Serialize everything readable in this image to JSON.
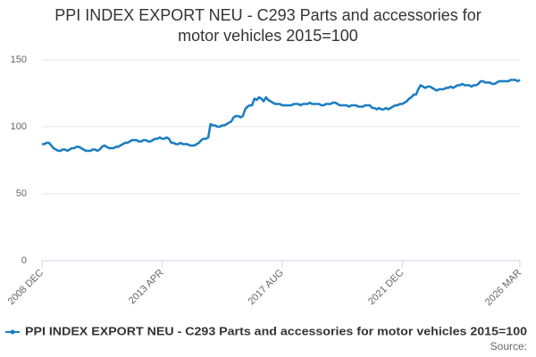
{
  "chart_data": {
    "type": "line",
    "title": "PPI INDEX EXPORT NEU - C293 Parts and accessories for motor vehicles 2015=100",
    "source": "Source:",
    "categories": [
      "2008 DEC",
      null,
      null,
      null,
      null,
      null,
      null,
      null,
      null,
      null,
      null,
      null,
      null,
      null,
      null,
      null,
      null,
      null,
      null,
      null,
      null,
      null,
      null,
      null,
      null,
      null,
      null,
      null,
      null,
      null,
      null,
      null,
      null,
      null,
      null,
      null,
      null,
      null,
      null,
      null,
      null,
      null,
      null,
      null,
      null,
      null,
      null,
      null,
      null,
      null,
      null,
      null,
      "2013 APR",
      null,
      null,
      null,
      null,
      null,
      null,
      null,
      null,
      null,
      null,
      null,
      null,
      null,
      null,
      null,
      null,
      null,
      null,
      null,
      null,
      null,
      null,
      null,
      null,
      null,
      null,
      null,
      null,
      null,
      null,
      null,
      null,
      null,
      null,
      null,
      null,
      null,
      null,
      null,
      null,
      null,
      null,
      null,
      null,
      null,
      null,
      null,
      null,
      null,
      null,
      null,
      "2017 AUG",
      null,
      null,
      null,
      null,
      null,
      null,
      null,
      null,
      null,
      null,
      null,
      null,
      null,
      null,
      null,
      null,
      null,
      null,
      null,
      null,
      null,
      null,
      null,
      null,
      null,
      null,
      null,
      null,
      null,
      null,
      null,
      null,
      null,
      null,
      null,
      null,
      null,
      null,
      null,
      null,
      null,
      null,
      null,
      null,
      null,
      null,
      null,
      null,
      null,
      null,
      null,
      "2021 DEC",
      null,
      null,
      null,
      null,
      null,
      null,
      null,
      null,
      null,
      null,
      null,
      null,
      null,
      null,
      null,
      null,
      null,
      null,
      null,
      null,
      null,
      null,
      null,
      null,
      null,
      null,
      null,
      null,
      null,
      null,
      null,
      null,
      null,
      null,
      null,
      null,
      null,
      null,
      null,
      null,
      null,
      null,
      null,
      null,
      null,
      null,
      null,
      null,
      null,
      null,
      "2026 MAR"
    ],
    "series": [
      {
        "name": "PPI INDEX EXPORT NEU - C293 Parts and accessories for motor vehicles 2015=100",
        "color": "#1a7dc0",
        "values": [
          87,
          87,
          88,
          88,
          86,
          84,
          83,
          82,
          82,
          83,
          83,
          82,
          83,
          84,
          84,
          85,
          85,
          84,
          83,
          82,
          82,
          82,
          83,
          83,
          82,
          83,
          85,
          86,
          85,
          84,
          84,
          84,
          85,
          85,
          86,
          87,
          88,
          88,
          89,
          90,
          90,
          90,
          89,
          89,
          90,
          90,
          89,
          89,
          90,
          91,
          91,
          92,
          91,
          91,
          92,
          91,
          88,
          88,
          87,
          87,
          88,
          87,
          87,
          87,
          86,
          86,
          86,
          87,
          88,
          90,
          91,
          91,
          92,
          102,
          101,
          101,
          100,
          100,
          101,
          101,
          102,
          103,
          104,
          107,
          108,
          108,
          107,
          108,
          113,
          115,
          116,
          116,
          121,
          120,
          122,
          121,
          119,
          122,
          120,
          119,
          118,
          117,
          117,
          117,
          116,
          116,
          116,
          116,
          116,
          117,
          117,
          117,
          116,
          117,
          117,
          117,
          118,
          117,
          117,
          117,
          117,
          116,
          116,
          117,
          117,
          117,
          118,
          118,
          117,
          116,
          116,
          116,
          116,
          115,
          116,
          116,
          116,
          115,
          115,
          115,
          116,
          116,
          116,
          114,
          114,
          113,
          114,
          113,
          113,
          114,
          113,
          114,
          115,
          116,
          116,
          117,
          117,
          118,
          119,
          121,
          122,
          124,
          124,
          128,
          131,
          130,
          129,
          130,
          130,
          129,
          128,
          127,
          128,
          128,
          128,
          129,
          129,
          130,
          129,
          130,
          131,
          131,
          132,
          131,
          131,
          131,
          130,
          131,
          131,
          132,
          134,
          134,
          133,
          133,
          133,
          132,
          132,
          133,
          134,
          134,
          134,
          134,
          134,
          135,
          135,
          135,
          134,
          135
        ]
      }
    ],
    "ylim": [
      0,
      150
    ],
    "yticks": [
      0,
      50,
      100,
      150
    ],
    "grid": true
  }
}
